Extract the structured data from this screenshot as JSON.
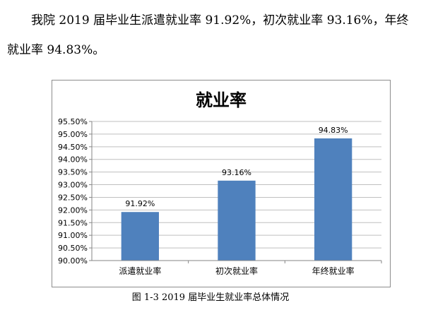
{
  "document": {
    "paragraph": "我院 2019 届毕业生派遣就业率 91.92%，初次就业率 93.16%，年终就业率 94.83%。",
    "caption": "图 1-3    2019 届毕业生就业率总体情况"
  },
  "chart_data": {
    "type": "bar",
    "title": "就业率",
    "categories": [
      "派遣就业率",
      "初次就业率",
      "年终就业率"
    ],
    "values": [
      91.92,
      93.16,
      94.83
    ],
    "data_labels": [
      "91.92%",
      "93.16%",
      "94.83%"
    ],
    "ylim": [
      90.0,
      95.5
    ],
    "ytick_labels": [
      "90.00%",
      "90.50%",
      "91.00%",
      "91.50%",
      "92.00%",
      "92.50%",
      "93.00%",
      "93.50%",
      "94.00%",
      "94.50%",
      "95.00%",
      "95.50%"
    ],
    "ytick_values": [
      90.0,
      90.5,
      91.0,
      91.5,
      92.0,
      92.5,
      93.0,
      93.5,
      94.0,
      94.5,
      95.0,
      95.5
    ],
    "grid": true,
    "legend": "none",
    "bar_color": "#4f81bd",
    "grid_color": "#bfbfbf"
  }
}
